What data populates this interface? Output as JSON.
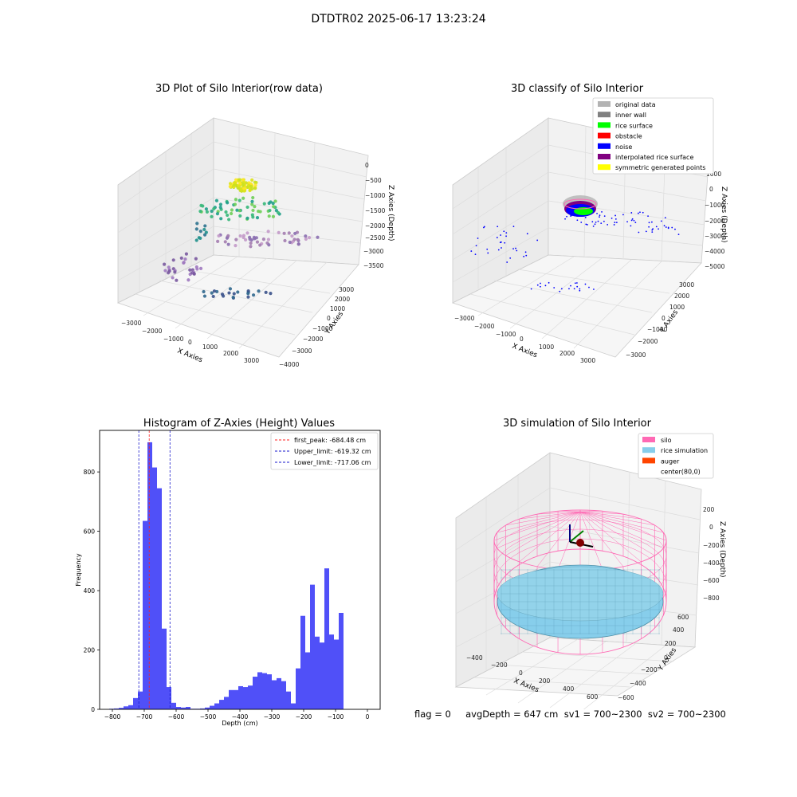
{
  "suptitle": "DTDTR02 2025-06-17 13:23:24",
  "status_text": "flag = 0     avgDepth = 647 cm  sv1 = 700~2300  sv2 = 700~2300",
  "colors": {
    "hist_bar": "#5050f8",
    "first_peak": "#ff2020",
    "limits": "#1a1acc",
    "silo": "#ff69b4",
    "rice_simulation": "#87ceeb",
    "auger": "#ff4500"
  },
  "chart_data": [
    {
      "type": "scatter",
      "title": "3D Plot of Silo Interior(row data)",
      "xlabel": "X Axies",
      "ylabel": "Y Axies",
      "zlabel": "Z Axies (Depth)",
      "x_ticks": [
        "−3000",
        "−2000",
        "−1000",
        "0",
        "1000",
        "2000",
        "3000"
      ],
      "y_ticks": [
        "−4000",
        "−3000",
        "−2000",
        "−1000",
        "0",
        "1000",
        "2000",
        "3000"
      ],
      "z_ticks": [
        "0",
        "−500",
        "−1000",
        "−1500",
        "−2000",
        "−2500",
        "−3000",
        "−3500"
      ],
      "colormap": "viridis (by depth)",
      "legend": []
    },
    {
      "type": "scatter",
      "title": "3D classify of Silo Interior",
      "xlabel": "X Axies",
      "ylabel": "Y Axies",
      "zlabel": "Z Axies (Depth)",
      "x_ticks": [
        "−3000",
        "−2000",
        "−1000",
        "0",
        "1000",
        "2000",
        "3000"
      ],
      "y_ticks": [
        "−3000",
        "−2000",
        "−1000",
        "0",
        "1000",
        "2000",
        "3000"
      ],
      "z_ticks": [
        "1000",
        "0",
        "−1000",
        "−2000",
        "−3000",
        "−4000",
        "−5000"
      ],
      "legend": [
        {
          "label": "original data",
          "color": "#b3b3b3"
        },
        {
          "label": "inner wall",
          "color": "#808080"
        },
        {
          "label": "rice surface",
          "color": "#00ff00"
        },
        {
          "label": "obstacle",
          "color": "#ff0000"
        },
        {
          "label": "noise",
          "color": "#0000ff"
        },
        {
          "label": "interpolated rice surface",
          "color": "#800080"
        },
        {
          "label": "symmetric generated points",
          "color": "#ffff00"
        }
      ]
    },
    {
      "type": "bar",
      "title": "Histogram of Z-Axies (Height) Values",
      "xlabel": "Depth (cm)",
      "ylabel": "Frequency",
      "xlim": [
        -840,
        40
      ],
      "ylim": [
        0,
        940
      ],
      "x_ticks": [
        -800,
        -700,
        -600,
        -500,
        -400,
        -300,
        -200,
        -100,
        0
      ],
      "y_ticks": [
        0,
        200,
        400,
        600,
        800
      ],
      "bin_width": 15,
      "bins": [
        [
          -810,
          2
        ],
        [
          -795,
          3
        ],
        [
          -780,
          5
        ],
        [
          -765,
          10
        ],
        [
          -750,
          14
        ],
        [
          -735,
          38
        ],
        [
          -720,
          60
        ],
        [
          -705,
          635
        ],
        [
          -690,
          900
        ],
        [
          -675,
          815
        ],
        [
          -660,
          745
        ],
        [
          -645,
          272
        ],
        [
          -630,
          75
        ],
        [
          -615,
          22
        ],
        [
          -600,
          8
        ],
        [
          -585,
          6
        ],
        [
          -570,
          8
        ],
        [
          -555,
          2
        ],
        [
          -540,
          2
        ],
        [
          -525,
          3
        ],
        [
          -510,
          6
        ],
        [
          -495,
          12
        ],
        [
          -480,
          20
        ],
        [
          -465,
          32
        ],
        [
          -450,
          42
        ],
        [
          -435,
          65
        ],
        [
          -420,
          65
        ],
        [
          -405,
          78
        ],
        [
          -390,
          75
        ],
        [
          -375,
          80
        ],
        [
          -360,
          110
        ],
        [
          -345,
          125
        ],
        [
          -330,
          122
        ],
        [
          -315,
          118
        ],
        [
          -300,
          98
        ],
        [
          -285,
          105
        ],
        [
          -270,
          95
        ],
        [
          -255,
          60
        ],
        [
          -240,
          20
        ],
        [
          -225,
          138
        ],
        [
          -210,
          315
        ],
        [
          -195,
          192
        ],
        [
          -180,
          420
        ],
        [
          -165,
          245
        ],
        [
          -150,
          225
        ],
        [
          -135,
          475
        ],
        [
          -120,
          252
        ],
        [
          -105,
          235
        ],
        [
          -90,
          325
        ]
      ],
      "vlines": [
        {
          "label": "first_peak: -684.48 cm",
          "x": -684.48,
          "color": "#ff2020"
        },
        {
          "label": "Upper_limit: -619.32 cm",
          "x": -619.32,
          "color": "#1a1acc"
        },
        {
          "label": "Lower_limit: -717.06 cm",
          "x": -717.06,
          "color": "#1a1acc"
        }
      ]
    },
    {
      "type": "surface",
      "title": "3D simulation of Silo Interior",
      "xlabel": "X Axies",
      "ylabel": "Y Axies",
      "zlabel": "Z Axies (Depth)",
      "x_ticks": [
        "−400",
        "−200",
        "0",
        "200",
        "400",
        "600"
      ],
      "y_ticks": [
        "−600",
        "−400",
        "−200",
        "0",
        "200",
        "400",
        "600"
      ],
      "z_ticks": [
        "200",
        "0",
        "−200",
        "−400",
        "−600",
        "−800"
      ],
      "legend": [
        {
          "label": "silo",
          "color": "#ff69b4"
        },
        {
          "label": "rice simulation",
          "color": "#87ceeb"
        },
        {
          "label": "auger",
          "color": "#ff4500"
        },
        {
          "label": "center(80,0)",
          "color": ""
        }
      ]
    }
  ]
}
